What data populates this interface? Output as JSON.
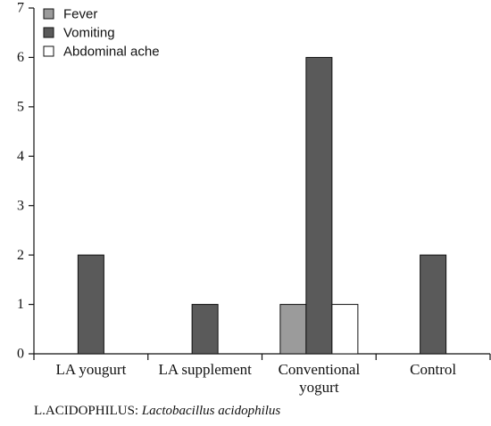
{
  "chart_data": {
    "type": "bar",
    "categories": [
      [
        "LA yougurt"
      ],
      [
        "LA supplement"
      ],
      [
        "Conventional",
        "yogurt"
      ],
      [
        "Control"
      ]
    ],
    "series": [
      {
        "name": "Fever",
        "color": "#9b9b9b",
        "values": [
          0,
          0,
          1,
          0
        ]
      },
      {
        "name": "Vomiting",
        "color": "#5a5a5a",
        "values": [
          2,
          1,
          6,
          2
        ]
      },
      {
        "name": "Abdominal ache",
        "color": "#ffffff",
        "values": [
          0,
          0,
          1,
          0
        ]
      }
    ],
    "ylim": [
      0,
      7
    ],
    "yticks": [
      "0",
      "1",
      "2",
      "3",
      "4",
      "5",
      "6",
      "7"
    ],
    "title": "",
    "xlabel": "",
    "ylabel": "",
    "legend_position": "top-left",
    "grid": false
  },
  "footnote": {
    "prefix": "L.ACIDOPHILUS: ",
    "italic": "Lactobacillus acidophilus"
  }
}
